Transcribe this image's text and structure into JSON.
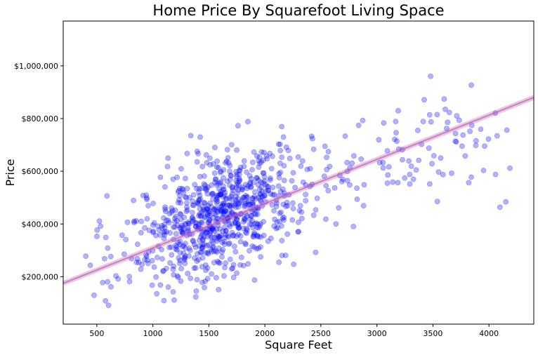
{
  "chart_data": {
    "type": "scatter",
    "title": "Home Price By Squarefoot Living Space",
    "xlabel": "Square Feet",
    "ylabel": "Price",
    "xlim": [
      200,
      4400
    ],
    "ylim": [
      20000,
      1170000
    ],
    "x_ticks": [
      500,
      1000,
      1500,
      2000,
      2500,
      3000,
      3500,
      4000
    ],
    "x_tick_labels": [
      "500",
      "1000",
      "1500",
      "2000",
      "2500",
      "3000",
      "3500",
      "4000"
    ],
    "y_ticks": [
      200000,
      400000,
      600000,
      800000,
      1000000
    ],
    "y_tick_labels": [
      "$200,000",
      "$400,000",
      "$600,000",
      "$800,000",
      "$1,000,000"
    ],
    "grid": false,
    "marker_color": "#0000ff",
    "marker_alpha": 0.3,
    "regression_line": {
      "color": "#c060b0",
      "points": [
        [
          200,
          175000
        ],
        [
          4400,
          880000
        ]
      ]
    },
    "density_model": {
      "n_points": 900,
      "x_range": [
        390,
        4200
      ],
      "y_range": [
        80000,
        1120000
      ],
      "x_mode": 1500,
      "y_center": [
        [
          400,
          270000
        ],
        [
          1000,
          330000
        ],
        [
          1500,
          420000
        ],
        [
          2000,
          500000
        ],
        [
          2500,
          570000
        ],
        [
          3000,
          650000
        ],
        [
          3500,
          700000
        ],
        [
          4000,
          760000
        ]
      ]
    }
  }
}
